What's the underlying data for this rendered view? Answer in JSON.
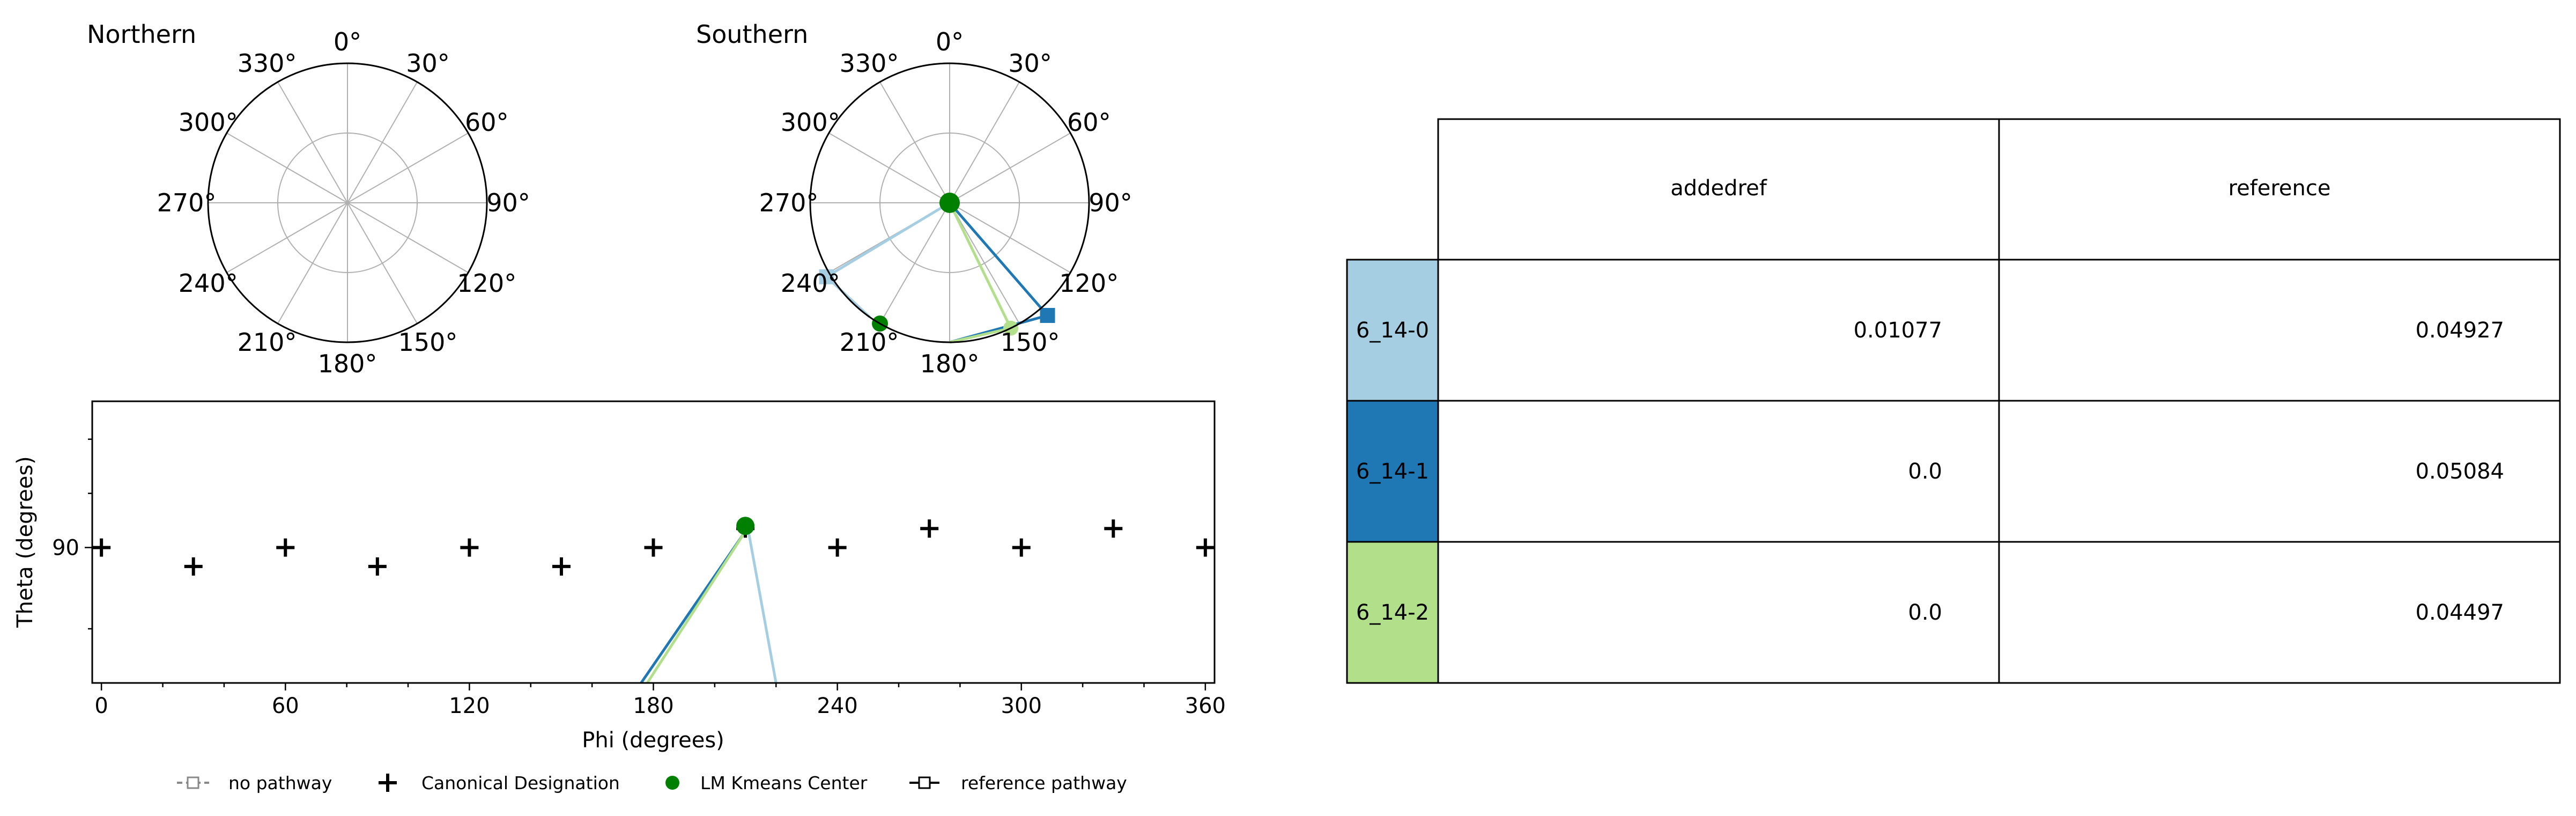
{
  "chart_data": [
    {
      "type": "polar",
      "title": "Northern",
      "angle_ticks": [
        "0°",
        "30°",
        "60°",
        "90°",
        "120°",
        "150°",
        "180°",
        "210°",
        "240°",
        "270°",
        "300°",
        "330°"
      ],
      "radial_grid": true,
      "series": []
    },
    {
      "type": "polar",
      "title": "Southern",
      "angle_ticks": [
        "0°",
        "30°",
        "60°",
        "90°",
        "120°",
        "150°",
        "180°",
        "210°",
        "240°",
        "270°",
        "300°",
        "330°"
      ],
      "radial_grid": true,
      "center_point": {
        "theta": 0,
        "r": 0
      },
      "series": [
        {
          "name": "6_14-0",
          "color": "#a6cee3",
          "points": [
            {
              "phi": 0,
              "r": 0
            },
            {
              "phi": 239,
              "r": 1.03
            },
            {
              "phi": 215,
              "r": 1.0
            }
          ],
          "end_marker": "square"
        },
        {
          "name": "6_14-1",
          "color": "#1f78b4",
          "points": [
            {
              "phi": 0,
              "r": 0
            },
            {
              "phi": 139,
              "r": 1.07
            },
            {
              "phi": 180,
              "r": 1.0
            }
          ],
          "end_marker": "square"
        },
        {
          "name": "6_14-2",
          "color": "#b2df8a",
          "points": [
            {
              "phi": 0,
              "r": 0
            },
            {
              "phi": 154,
              "r": 1.0
            },
            {
              "phi": 180,
              "r": 1.0
            }
          ],
          "end_marker": "circle"
        }
      ],
      "kmeans_centers": [
        {
          "phi": 0,
          "r": 0
        },
        {
          "phi": 210,
          "r": 1.0
        }
      ]
    },
    {
      "type": "scatter",
      "xlabel": "Phi (degrees)",
      "ylabel": "Theta (degrees)",
      "xlim": [
        -3,
        363
      ],
      "ylim": [
        65,
        117
      ],
      "x_ticks": [
        "0",
        "60",
        "120",
        "180",
        "240",
        "300",
        "360"
      ],
      "y_ticks": [
        "90"
      ],
      "canonical_designations": [
        {
          "x": 0,
          "y": 90
        },
        {
          "x": 30,
          "y": 86.5
        },
        {
          "x": 60,
          "y": 90
        },
        {
          "x": 90,
          "y": 86.5
        },
        {
          "x": 120,
          "y": 90
        },
        {
          "x": 150,
          "y": 86.5
        },
        {
          "x": 180,
          "y": 90
        },
        {
          "x": 210,
          "y": 93.5
        },
        {
          "x": 240,
          "y": 90
        },
        {
          "x": 270,
          "y": 93.5
        },
        {
          "x": 300,
          "y": 90
        },
        {
          "x": 330,
          "y": 93.5
        },
        {
          "x": 360,
          "y": 90
        }
      ],
      "kmeans_centers": [
        {
          "x": 210,
          "y": 94
        }
      ],
      "series": [
        {
          "name": "6_14-0",
          "color": "#a6cee3",
          "points": [
            {
              "x": 211,
              "y": 93
            },
            {
              "x": 220,
              "y": 65
            }
          ]
        },
        {
          "name": "6_14-1",
          "color": "#1f78b4",
          "points": [
            {
              "x": 210,
              "y": 93
            },
            {
              "x": 176,
              "y": 65
            }
          ]
        },
        {
          "name": "6_14-2",
          "color": "#b2df8a",
          "points": [
            {
              "x": 210,
              "y": 93
            },
            {
              "x": 178,
              "y": 65
            }
          ]
        }
      ],
      "legend": {
        "placement": "bottom",
        "entries": [
          "no pathway",
          "Canonical Designation",
          "LM Kmeans Center",
          "reference pathway"
        ]
      }
    },
    {
      "type": "table",
      "columns": [
        "addedref",
        "reference"
      ],
      "rows": [
        {
          "label": "6_14-0",
          "color": "#a6cee3",
          "values": [
            "0.01077",
            "0.04927"
          ]
        },
        {
          "label": "6_14-1",
          "color": "#1f78b4",
          "values": [
            "0.0",
            "0.05084"
          ]
        },
        {
          "label": "6_14-2",
          "color": "#b2df8a",
          "values": [
            "0.0",
            "0.04497"
          ]
        }
      ]
    }
  ]
}
